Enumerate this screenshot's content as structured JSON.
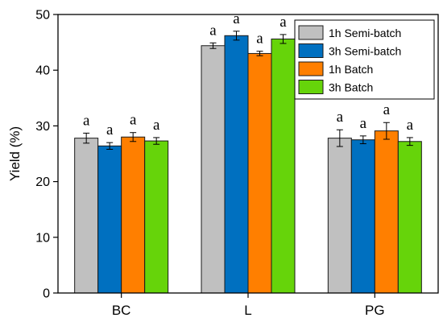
{
  "chart_data": {
    "type": "bar",
    "ylabel": "Yield (%)",
    "xlabel": "",
    "ylim": [
      0,
      50
    ],
    "yticks": [
      0,
      10,
      20,
      30,
      40,
      50
    ],
    "categories": [
      "BC",
      "L",
      "PG"
    ],
    "series": [
      {
        "name": "1h Semi-batch",
        "color": "#c0c0c0",
        "values": [
          27.8,
          44.4,
          27.8
        ],
        "errors": [
          0.9,
          0.5,
          1.5
        ],
        "labels": [
          "a",
          "a",
          "a"
        ]
      },
      {
        "name": "3h Semi-batch",
        "color": "#0070c0",
        "values": [
          26.4,
          46.2,
          27.5
        ],
        "errors": [
          0.6,
          0.8,
          0.7
        ],
        "labels": [
          "a",
          "a",
          "a"
        ]
      },
      {
        "name": "1h Batch",
        "color": "#ff7f00",
        "values": [
          28.0,
          43.0,
          29.1
        ],
        "errors": [
          0.8,
          0.4,
          1.5
        ],
        "labels": [
          "a",
          "a",
          "a"
        ]
      },
      {
        "name": "3h Batch",
        "color": "#66d40a",
        "values": [
          27.3,
          45.6,
          27.2
        ],
        "errors": [
          0.6,
          0.8,
          0.7
        ],
        "labels": [
          "a",
          "a",
          "a"
        ]
      }
    ],
    "legend": "top-right",
    "grid": false
  }
}
